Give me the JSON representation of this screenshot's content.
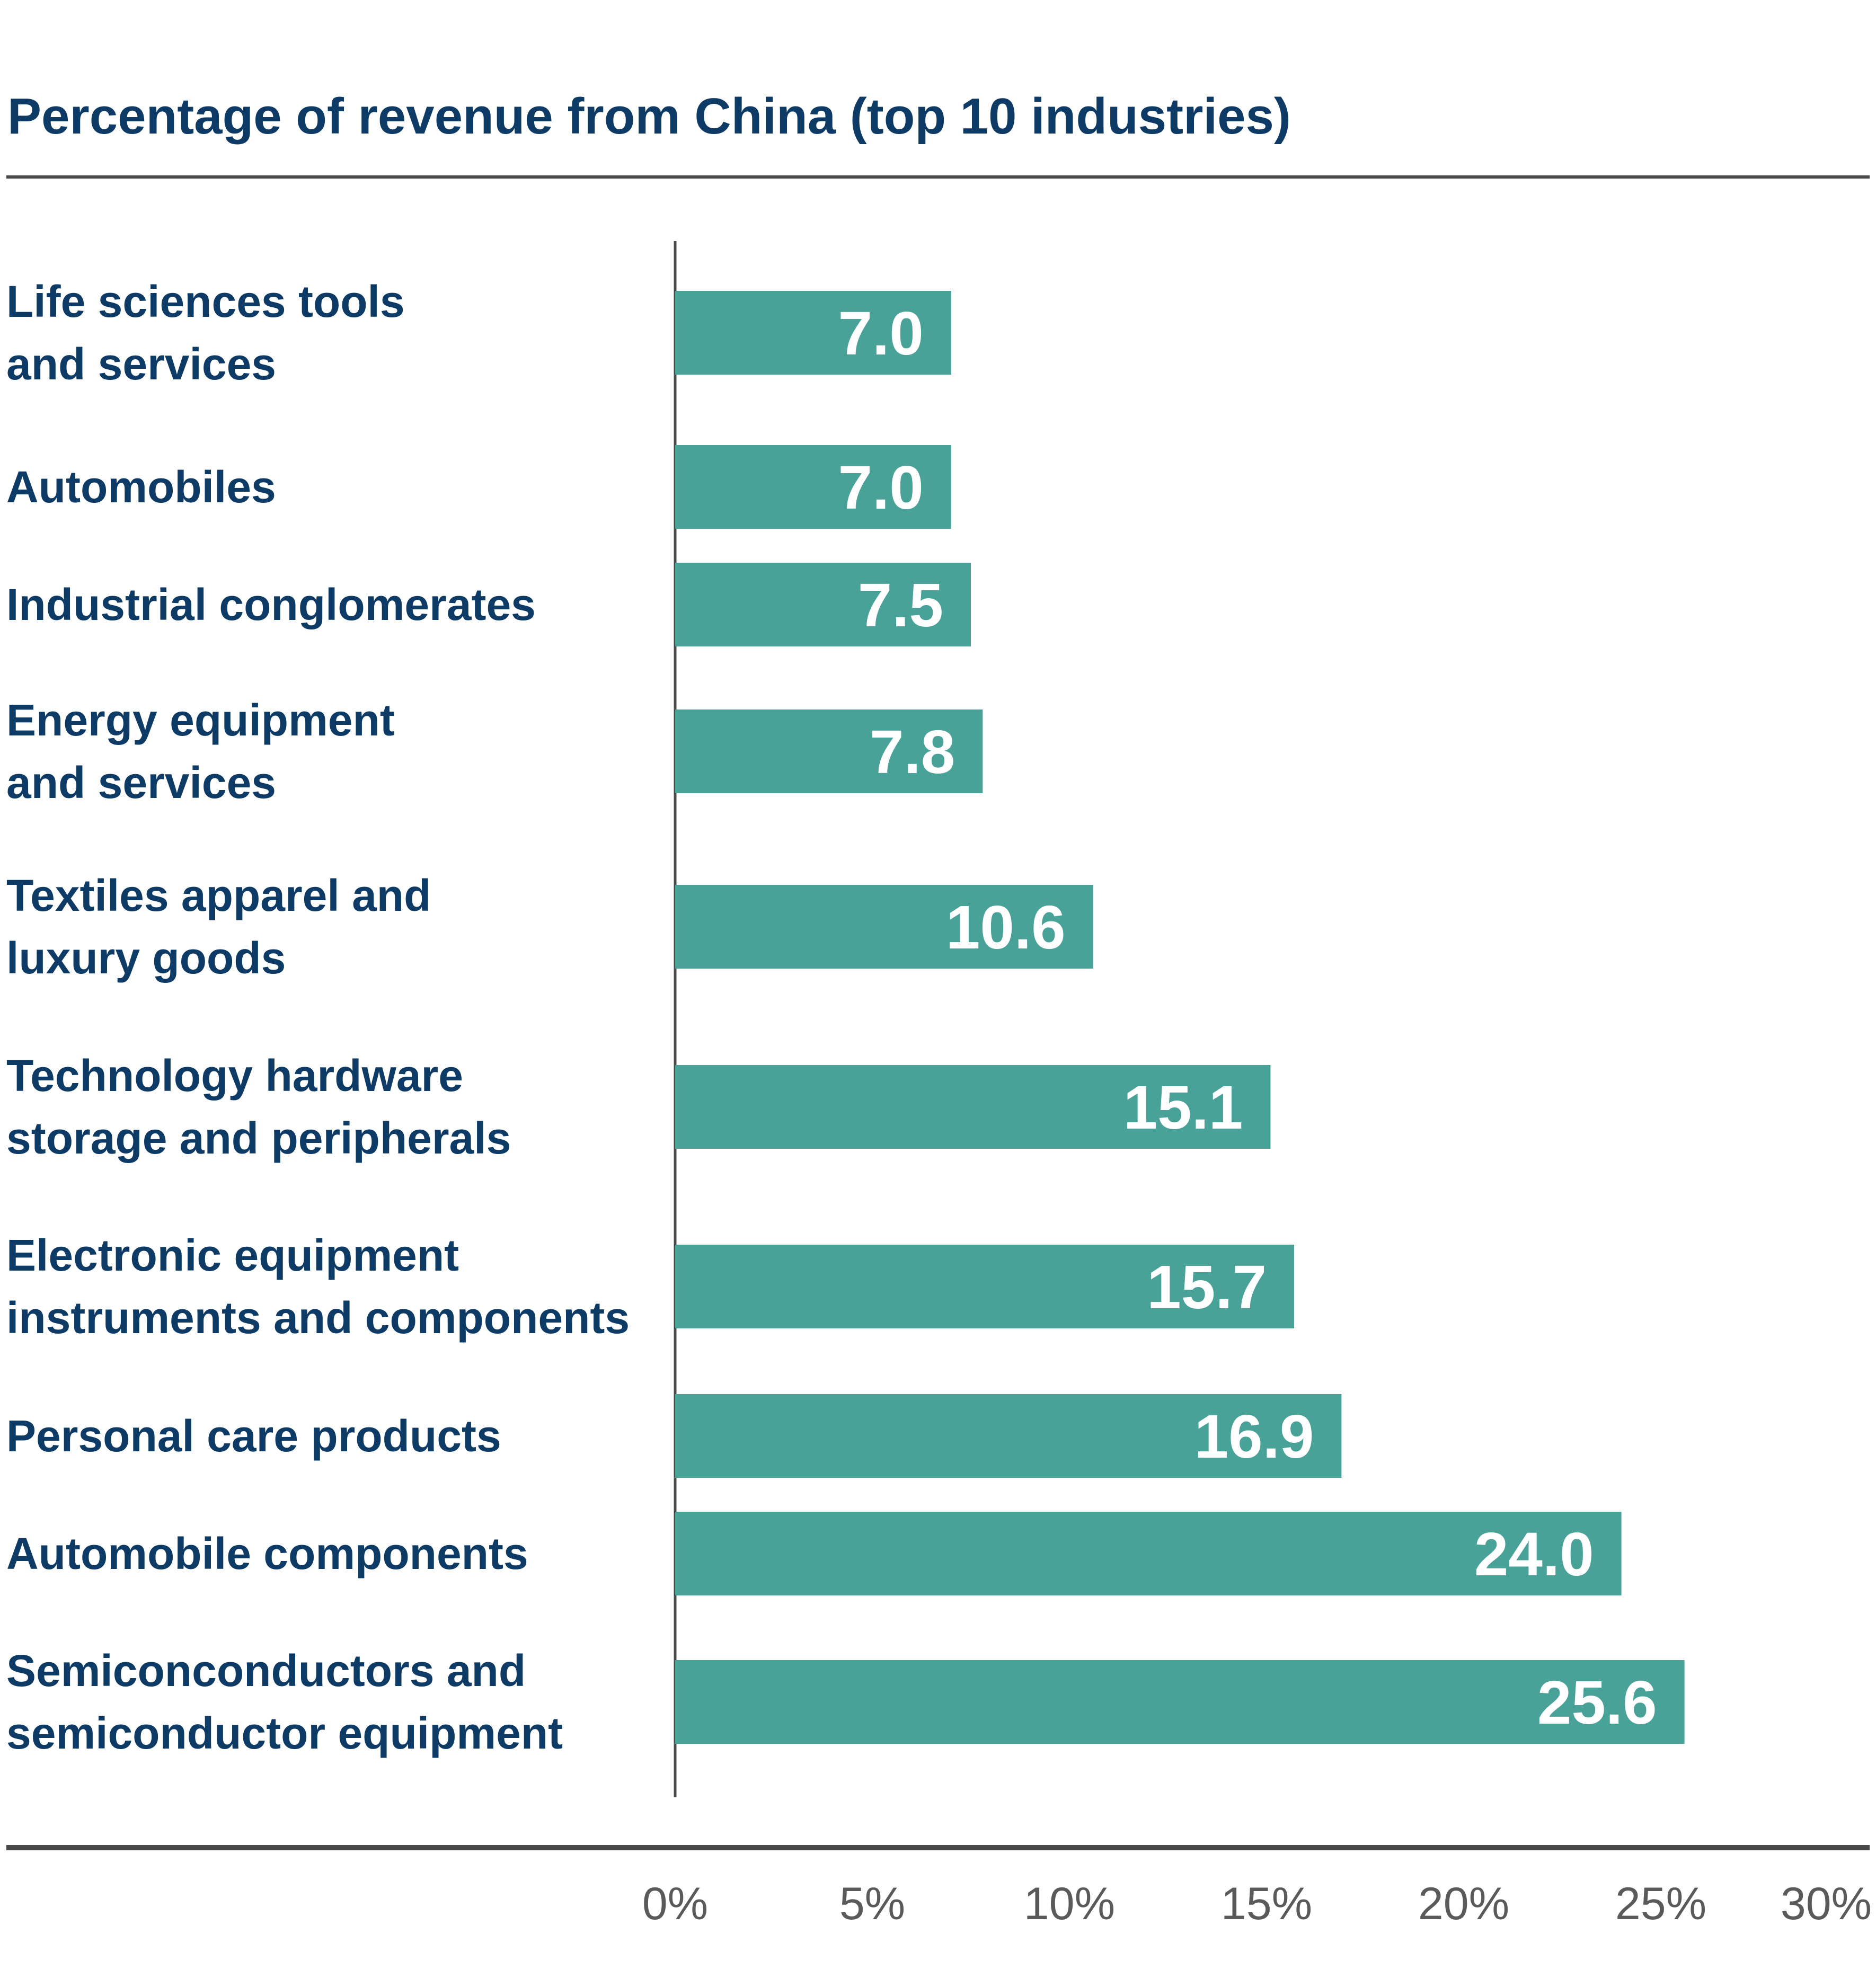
{
  "colors": {
    "bar": "#48a297",
    "title_text": "#0d3b66",
    "label_text": "#0d3b66",
    "value_text": "#ffffff",
    "tick_text": "#5a5a5a",
    "rule": "#4a4a4a"
  },
  "chart_data": {
    "type": "bar",
    "orientation": "horizontal",
    "title": "Percentage of revenue from China (top 10 industries)",
    "xlabel": "",
    "ylabel": "",
    "xlim": [
      0,
      30
    ],
    "x_ticks": [
      0,
      5,
      10,
      15,
      20,
      25,
      30
    ],
    "x_tick_labels": [
      "0%",
      "5%",
      "10%",
      "15%",
      "20%",
      "25%",
      "30%"
    ],
    "grid": false,
    "legend": "none",
    "categories": [
      [
        "Life sciences tools",
        "and services"
      ],
      [
        "Automobiles"
      ],
      [
        "Industrial conglomerates"
      ],
      [
        "Energy equipment",
        "and services"
      ],
      [
        "Textiles apparel and",
        "luxury goods"
      ],
      [
        "Technology hardware",
        "storage and peripherals"
      ],
      [
        "Electronic equipment",
        "instruments and components"
      ],
      [
        "Personal care products"
      ],
      [
        "Automobile components"
      ],
      [
        "Semiconconductors and",
        "semiconductor equipment"
      ]
    ],
    "values": [
      7.0,
      7.0,
      7.5,
      7.8,
      10.6,
      15.1,
      15.7,
      16.9,
      24.0,
      25.6
    ],
    "value_labels": [
      "7.0",
      "7.0",
      "7.5",
      "7.8",
      "10.6",
      "15.1",
      "15.7",
      "16.9",
      "24.0",
      "25.6"
    ]
  }
}
